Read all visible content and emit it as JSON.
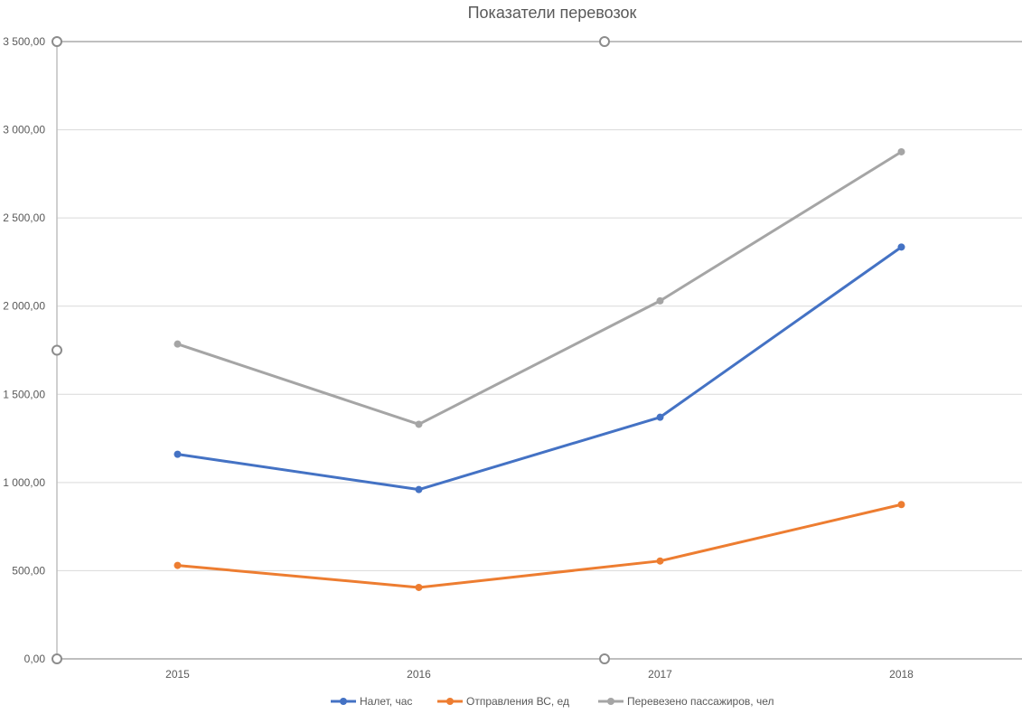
{
  "chart_data": {
    "type": "line",
    "title": "Показатели перевозок",
    "xlabel": "",
    "ylabel": "",
    "categories": [
      "2015",
      "2016",
      "2017",
      "2018"
    ],
    "ylim": [
      0,
      3500
    ],
    "yticks": [
      0,
      500,
      1000,
      1500,
      2000,
      2500,
      3000,
      3500
    ],
    "ytick_labels": [
      "0,00",
      "500,00",
      "1 000,00",
      "1 500,00",
      "2 000,00",
      "2 500,00",
      "3 000,00",
      "3 500,00"
    ],
    "grid": true,
    "legend_position": "bottom",
    "series": [
      {
        "name": "Налет, час",
        "color": "#4472c4",
        "values": [
          1160,
          960,
          1370,
          2335
        ]
      },
      {
        "name": "Отправления ВС, ед",
        "color": "#ed7d31",
        "values": [
          530,
          405,
          555,
          875
        ]
      },
      {
        "name": "Перевезено пассажиров, чел",
        "color": "#a5a5a5",
        "values": [
          1785,
          1330,
          2030,
          2875
        ]
      }
    ]
  }
}
